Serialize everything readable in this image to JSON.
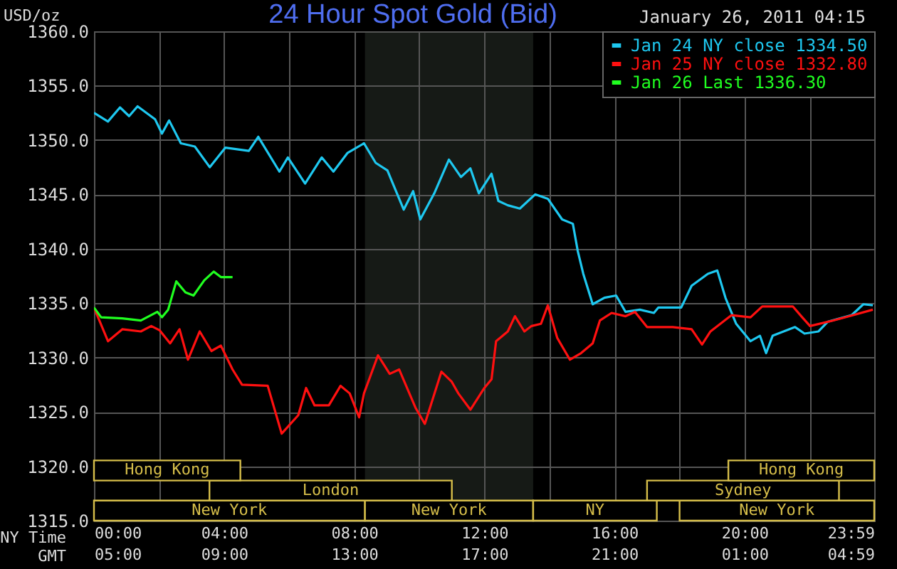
{
  "chart_data": {
    "type": "line",
    "title": "24 Hour Spot Gold (Bid)",
    "subtitle": "January 26, 2011 04:15",
    "ylabel": "USD/oz",
    "xlabel": "NY Time",
    "x2label": "GMT",
    "xlim": [
      0,
      23.983
    ],
    "ylim": [
      1315,
      1360
    ],
    "xticks": [
      {
        "value": 0,
        "label": "00:00"
      },
      {
        "value": 2,
        "label": null
      },
      {
        "value": 4,
        "label": "04:00"
      },
      {
        "value": 6,
        "label": null
      },
      {
        "value": 8,
        "label": "08:00"
      },
      {
        "value": 10,
        "label": null
      },
      {
        "value": 12,
        "label": "12:00"
      },
      {
        "value": 14,
        "label": null
      },
      {
        "value": 16,
        "label": "16:00"
      },
      {
        "value": 18,
        "label": null
      },
      {
        "value": 20,
        "label": "20:00"
      },
      {
        "value": 22,
        "label": null
      },
      {
        "value": 23.983,
        "label": "23:59"
      }
    ],
    "x2lim": [
      "2011-01-26T05:00",
      "2011-01-27T04:59"
    ],
    "x2ticks": [
      {
        "value": "2011-01-26T05:00",
        "label": "05:00"
      },
      {
        "value": "2011-01-26T09:00",
        "label": "09:00"
      },
      {
        "value": "2011-01-26T13:00",
        "label": "13:00"
      },
      {
        "value": "2011-01-26T17:00",
        "label": "17:00"
      },
      {
        "value": "2011-01-26T21:00",
        "label": "21:00"
      },
      {
        "value": "2011-01-27T01:00",
        "label": "01:00"
      },
      {
        "value": "2011-01-27T04:59",
        "label": "04:59"
      }
    ],
    "yticks": [
      {
        "value": 1315,
        "label": "1315.0"
      },
      {
        "value": 1320,
        "label": "1320.0"
      },
      {
        "value": 1325,
        "label": "1325.0"
      },
      {
        "value": 1330,
        "label": "1330.0"
      },
      {
        "value": 1335,
        "label": "1335.0"
      },
      {
        "value": 1340,
        "label": "1340.0"
      },
      {
        "value": 1345,
        "label": "1345.0"
      },
      {
        "value": 1350,
        "label": "1350.0"
      },
      {
        "value": 1355,
        "label": "1355.0"
      },
      {
        "value": 1360,
        "label": "1360.0"
      }
    ],
    "grid": true,
    "legend": "top right",
    "bands": [
      {
        "axis": "x",
        "from": 8.33,
        "to": 13.5,
        "color": "#161a16"
      },
      {
        "axis": "x",
        "from": 0,
        "to": 8.33,
        "label": "New York",
        "color": "#d6be4a"
      },
      {
        "axis": "x",
        "from": 8.33,
        "to": 13.5,
        "label": "New York",
        "color": "#d6be4a"
      },
      {
        "axis": "x",
        "from": 13.5,
        "to": 17.3,
        "label": "NY",
        "color": "#d6be4a"
      },
      {
        "axis": "x",
        "from": 18,
        "to": 23.983,
        "label": "New York",
        "color": "#d6be4a"
      },
      {
        "axis": "x",
        "from": 3.55,
        "to": 11,
        "label": "London",
        "color": "#d6be4a"
      },
      {
        "axis": "x",
        "from": 17,
        "to": 22.9,
        "label": "Sydney",
        "color": "#d6be4a"
      },
      {
        "axis": "x",
        "from": 0,
        "to": 4.5,
        "label": "Hong Kong",
        "color": "#d6be4a"
      },
      {
        "axis": "x",
        "from": 19.5,
        "to": 23.983,
        "label": "Hong Kong",
        "color": "#d6be4a"
      }
    ],
    "series": [
      {
        "name": "Jan 24 NY close 1334.50",
        "color": "#1ec8f0",
        "x": [
          0,
          0.43,
          0.8,
          1.08,
          1.34,
          1.88,
          2.09,
          2.31,
          2.67,
          3.1,
          3.56,
          4.04,
          4.76,
          5.05,
          5.7,
          5.96,
          6.49,
          7.0,
          7.36,
          7.79,
          8.3,
          8.66,
          9.02,
          9.52,
          9.81,
          10.03,
          10.46,
          10.91,
          11.28,
          11.57,
          11.83,
          12.22,
          12.43,
          12.72,
          13.09,
          13.56,
          13.95,
          14.39,
          14.72,
          14.87,
          15.04,
          15.33,
          15.69,
          16.05,
          16.34,
          16.78,
          17.21,
          17.35,
          18.05,
          18.37,
          18.87,
          19.16,
          19.41,
          19.74,
          20.18,
          20.47,
          20.66,
          20.86,
          21.55,
          21.84,
          22.27,
          22.56,
          23.29,
          23.65,
          23.94
        ],
        "values": [
          1352.5,
          1351.7,
          1353.0,
          1352.2,
          1353.1,
          1351.9,
          1350.6,
          1351.8,
          1349.7,
          1349.4,
          1347.5,
          1349.3,
          1349.0,
          1350.3,
          1347.1,
          1348.4,
          1346.0,
          1348.4,
          1347.1,
          1348.8,
          1349.7,
          1347.9,
          1347.2,
          1343.6,
          1345.3,
          1342.7,
          1345.1,
          1348.2,
          1346.6,
          1347.4,
          1345.1,
          1346.9,
          1344.4,
          1344.0,
          1343.7,
          1345.0,
          1344.6,
          1342.7,
          1342.3,
          1339.8,
          1337.7,
          1334.9,
          1335.5,
          1335.7,
          1334.2,
          1334.4,
          1334.1,
          1334.6,
          1334.6,
          1336.6,
          1337.7,
          1338.0,
          1335.5,
          1333.1,
          1331.5,
          1332.0,
          1330.4,
          1332.0,
          1332.8,
          1332.2,
          1332.4,
          1333.3,
          1333.9,
          1334.9,
          1334.8
        ]
      },
      {
        "name": "Jan 25 NY close 1332.80",
        "color": "#ff1010",
        "x": [
          0,
          0.43,
          0.87,
          1.44,
          1.76,
          2.02,
          2.34,
          2.63,
          2.89,
          3.25,
          3.61,
          3.9,
          4.26,
          4.55,
          5.34,
          5.77,
          6.28,
          6.52,
          6.78,
          7.22,
          7.58,
          7.86,
          8.15,
          8.3,
          8.73,
          9.09,
          9.38,
          9.88,
          10.17,
          10.68,
          10.99,
          11.2,
          11.57,
          12.0,
          12.22,
          12.36,
          12.72,
          12.94,
          13.23,
          13.45,
          13.74,
          13.95,
          14.24,
          14.63,
          14.97,
          15.33,
          15.55,
          15.91,
          16.34,
          16.63,
          17.0,
          17.79,
          18.37,
          18.69,
          18.95,
          19.6,
          20.18,
          20.54,
          21.48,
          21.77,
          22.01,
          22.71,
          23.22,
          23.94
        ],
        "values": [
          1334.6,
          1331.5,
          1332.6,
          1332.4,
          1332.9,
          1332.5,
          1331.3,
          1332.6,
          1329.8,
          1332.4,
          1330.6,
          1331.1,
          1328.9,
          1327.5,
          1327.4,
          1323.0,
          1324.7,
          1327.2,
          1325.6,
          1325.6,
          1327.4,
          1326.7,
          1324.5,
          1326.7,
          1330.2,
          1328.5,
          1328.9,
          1325.4,
          1323.9,
          1328.7,
          1327.8,
          1326.7,
          1325.2,
          1327.2,
          1328.0,
          1331.5,
          1332.4,
          1333.8,
          1332.4,
          1332.9,
          1333.1,
          1334.8,
          1331.8,
          1329.8,
          1330.4,
          1331.3,
          1333.4,
          1334.1,
          1333.8,
          1334.2,
          1332.8,
          1332.8,
          1332.6,
          1331.2,
          1332.4,
          1333.9,
          1333.7,
          1334.7,
          1334.7,
          1333.7,
          1332.9,
          1333.4,
          1333.8,
          1334.4
        ]
      },
      {
        "name": "Jan 26 Last 1336.30",
        "color": "#20ff20",
        "x": [
          0,
          0.22,
          0.87,
          1.44,
          1.95,
          2.09,
          2.28,
          2.53,
          2.81,
          3.06,
          3.39,
          3.68,
          3.9,
          4.26
        ],
        "values": [
          1334.6,
          1333.7,
          1333.6,
          1333.4,
          1334.2,
          1333.7,
          1334.4,
          1337.0,
          1336.0,
          1335.7,
          1337.1,
          1337.9,
          1337.4,
          1337.4
        ]
      }
    ]
  }
}
